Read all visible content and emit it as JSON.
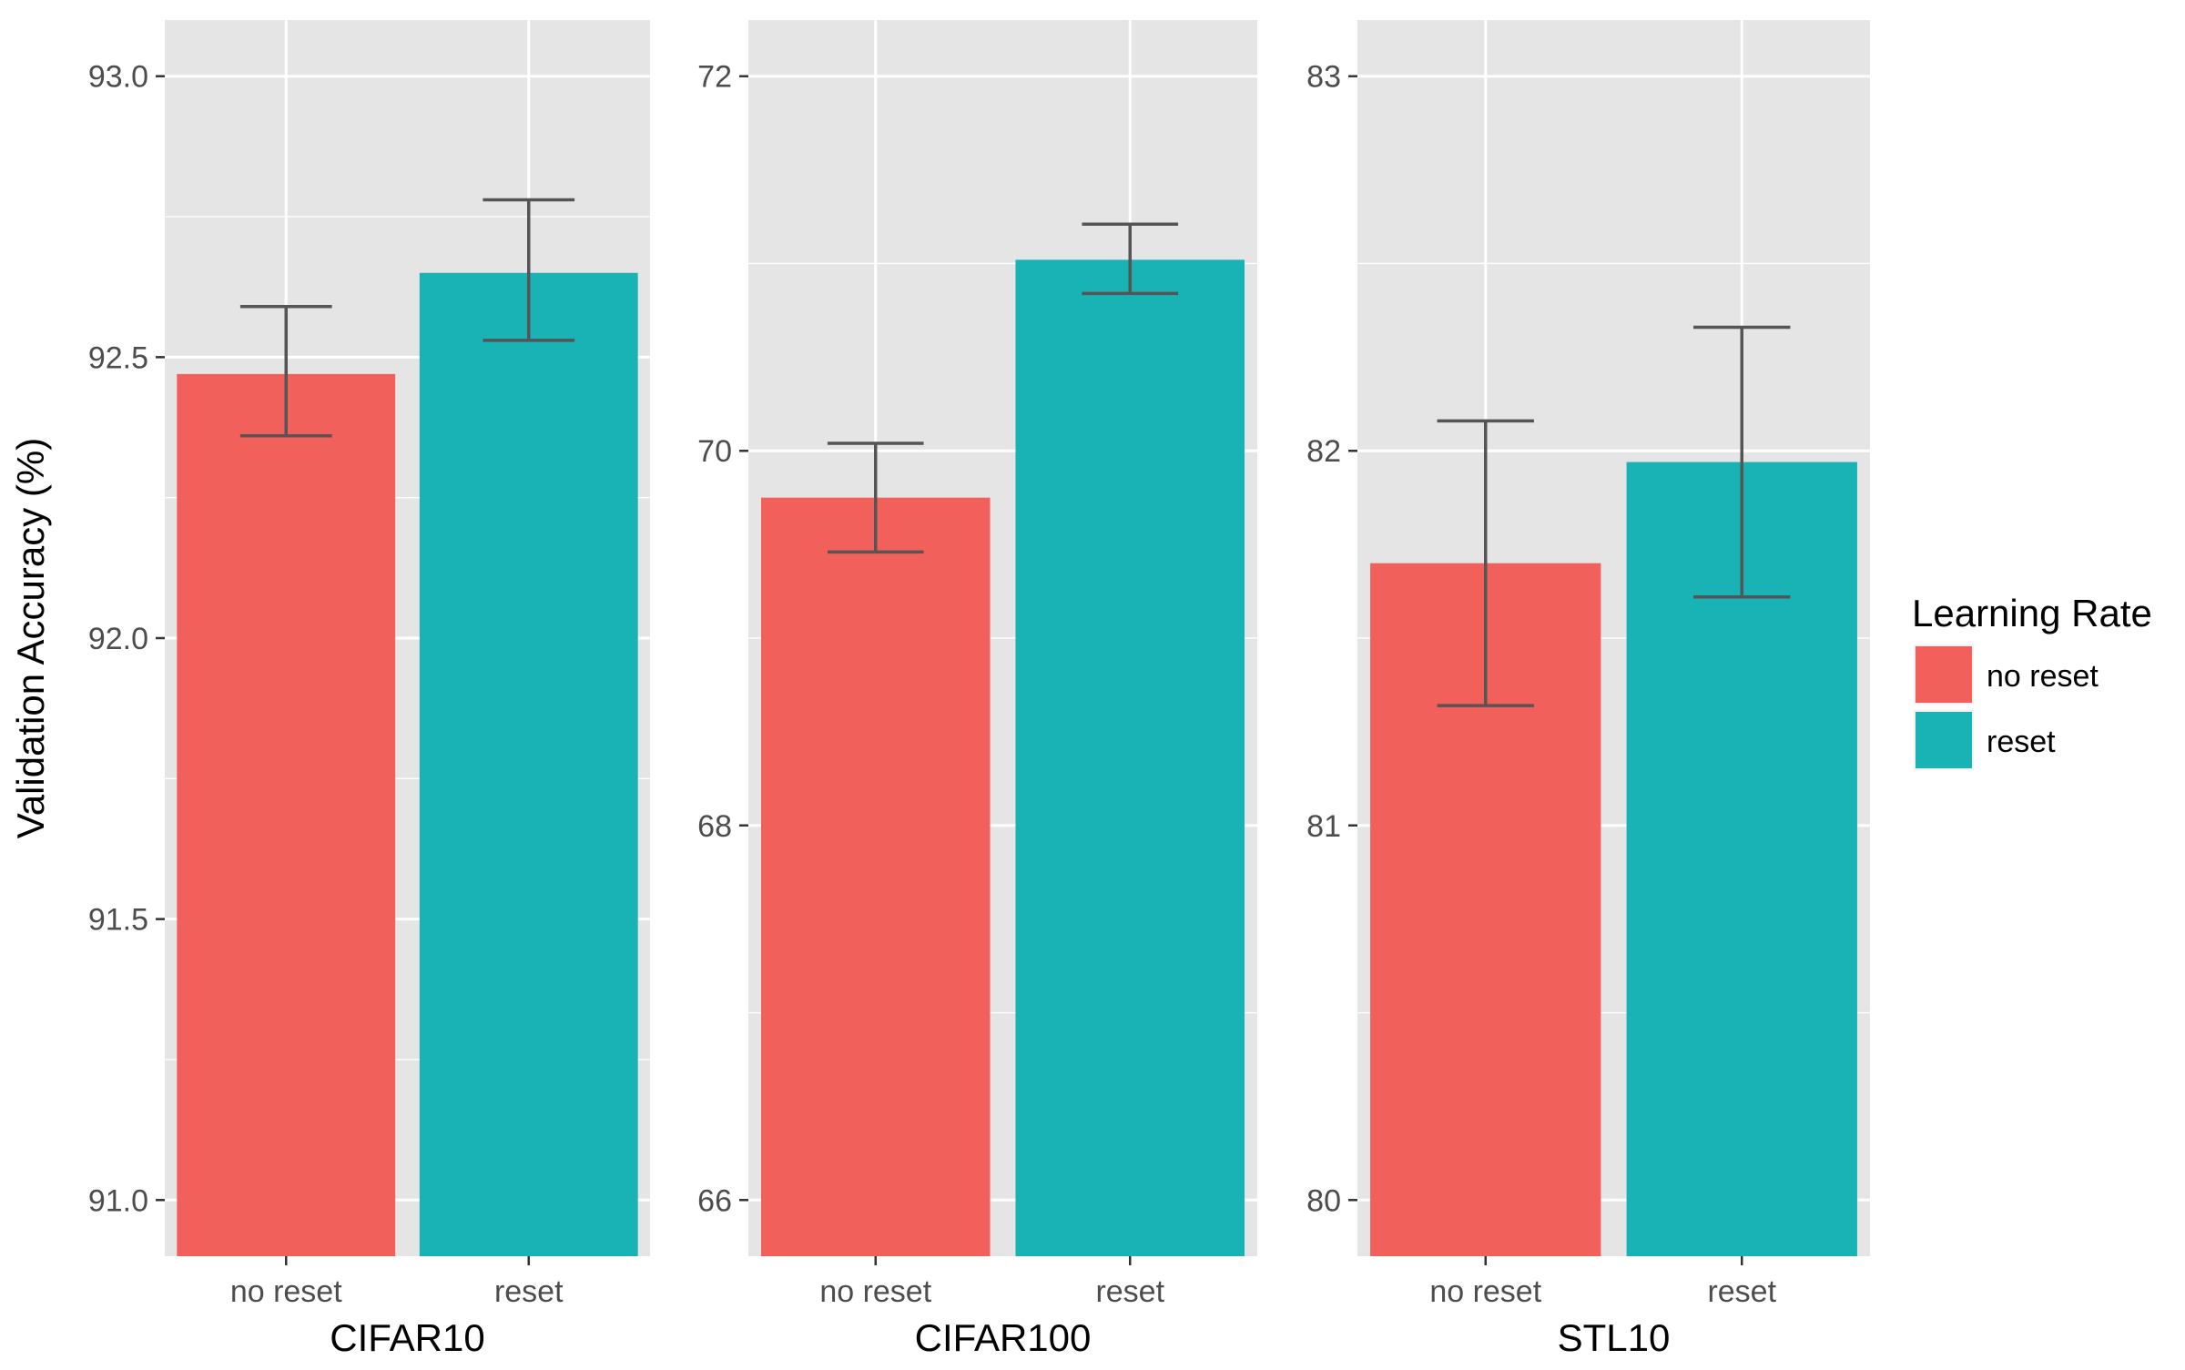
{
  "chart_data": {
    "type": "bar",
    "ylabel": "Validation Accuracy (%)",
    "legend": {
      "title": "Learning Rate",
      "position": "right",
      "entries": [
        {
          "label": "no reset",
          "color": "#F2605C"
        },
        {
          "label": "reset",
          "color": "#19B3B6"
        }
      ]
    },
    "categories": [
      "no reset",
      "reset"
    ],
    "facets": [
      {
        "name": "CIFAR10",
        "ylim": [
          90.9,
          93.1
        ],
        "ticks_major": [
          91.0,
          91.5,
          92.0,
          92.5,
          93.0
        ],
        "tick_labels": [
          "91.0",
          "91.5",
          "92.0",
          "92.5",
          "93.0"
        ],
        "ticks_minor": [
          91.25,
          91.75,
          92.25,
          92.75
        ],
        "values": [
          92.47,
          92.65
        ],
        "error_low": [
          92.36,
          92.53
        ],
        "error_high": [
          92.59,
          92.78
        ]
      },
      {
        "name": "CIFAR100",
        "ylim": [
          65.7,
          72.3
        ],
        "ticks_major": [
          66,
          68,
          70,
          72
        ],
        "tick_labels": [
          "66",
          "68",
          "70",
          "72"
        ],
        "ticks_minor": [
          67,
          69,
          71
        ],
        "values": [
          69.75,
          71.02
        ],
        "error_low": [
          69.46,
          70.84
        ],
        "error_high": [
          70.04,
          71.21
        ]
      },
      {
        "name": "STL10",
        "ylim": [
          79.85,
          83.15
        ],
        "ticks_major": [
          80,
          81,
          82,
          83
        ],
        "tick_labels": [
          "80",
          "81",
          "82",
          "83"
        ],
        "ticks_minor": [
          80.5,
          81.5,
          82.5
        ],
        "values": [
          81.7,
          81.97
        ],
        "error_low": [
          81.32,
          81.61
        ],
        "error_high": [
          82.08,
          82.33
        ]
      }
    ]
  }
}
